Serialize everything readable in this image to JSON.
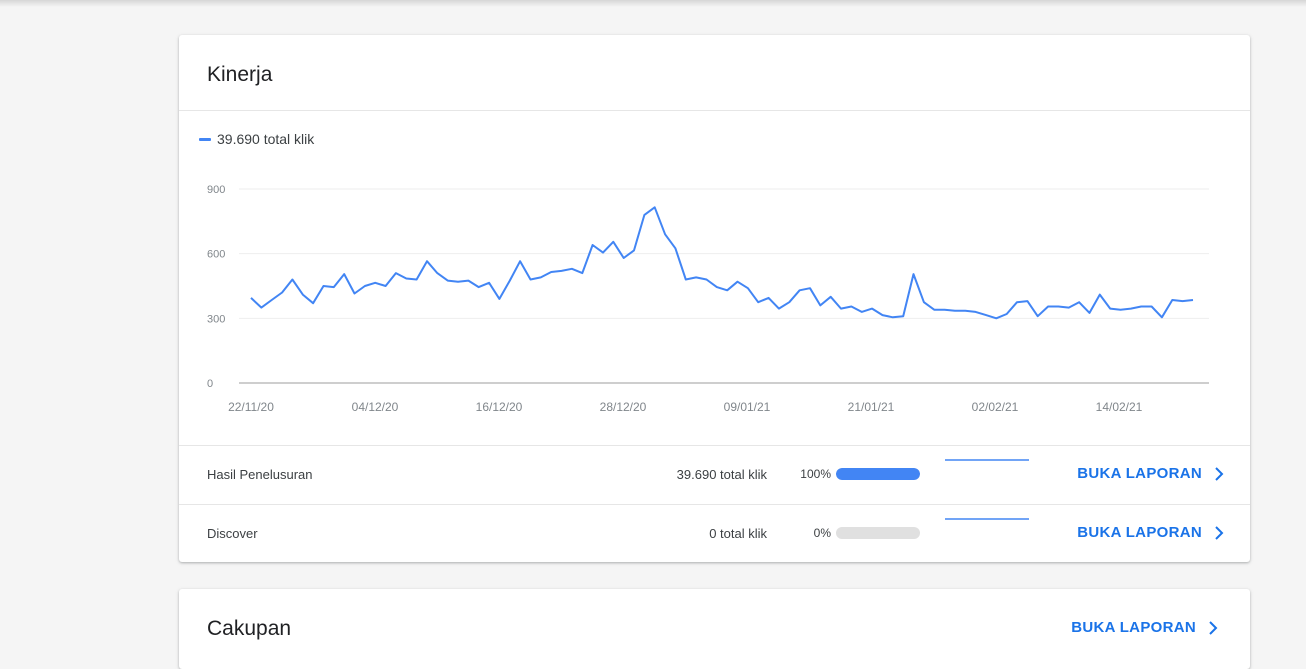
{
  "performance": {
    "title": "Kinerja",
    "legend": "39.690 total klik",
    "rows": [
      {
        "name": "Hasil Penelusuran",
        "clicks": "39.690 total klik",
        "percent": "100%",
        "fill": 1.0,
        "link": "BUKA LAPORAN"
      },
      {
        "name": "Discover",
        "clicks": "0 total klik",
        "percent": "0%",
        "fill": 0.0,
        "link": "BUKA LAPORAN"
      }
    ]
  },
  "coverage": {
    "title": "Cakupan",
    "link": "BUKA LAPORAN"
  },
  "colors": {
    "accent": "#4285f4",
    "link": "#1a73e8"
  },
  "chart_data": {
    "type": "line",
    "ylim": [
      0,
      900
    ],
    "y_ticks": [
      "0",
      "300",
      "600",
      "900"
    ],
    "x_ticks": [
      "22/11/20",
      "04/12/20",
      "16/12/20",
      "28/12/20",
      "09/01/21",
      "21/01/21",
      "02/02/21",
      "14/02/21"
    ],
    "grid": true,
    "series": [
      {
        "name": "39.690 total klik",
        "values": [
          395,
          350,
          385,
          420,
          480,
          410,
          370,
          450,
          445,
          505,
          415,
          450,
          465,
          450,
          510,
          485,
          480,
          565,
          510,
          475,
          470,
          475,
          445,
          465,
          390,
          475,
          565,
          480,
          490,
          515,
          520,
          530,
          510,
          640,
          605,
          655,
          580,
          615,
          780,
          815,
          690,
          625,
          480,
          490,
          480,
          445,
          430,
          470,
          440,
          375,
          395,
          345,
          375,
          430,
          440,
          360,
          400,
          345,
          355,
          330,
          345,
          315,
          305,
          310,
          505,
          375,
          340,
          340,
          335,
          335,
          330,
          315,
          300,
          320,
          375,
          380,
          310,
          355,
          355,
          350,
          375,
          325,
          410,
          345,
          340,
          345,
          355,
          355,
          305,
          385,
          380,
          385
        ]
      }
    ]
  }
}
